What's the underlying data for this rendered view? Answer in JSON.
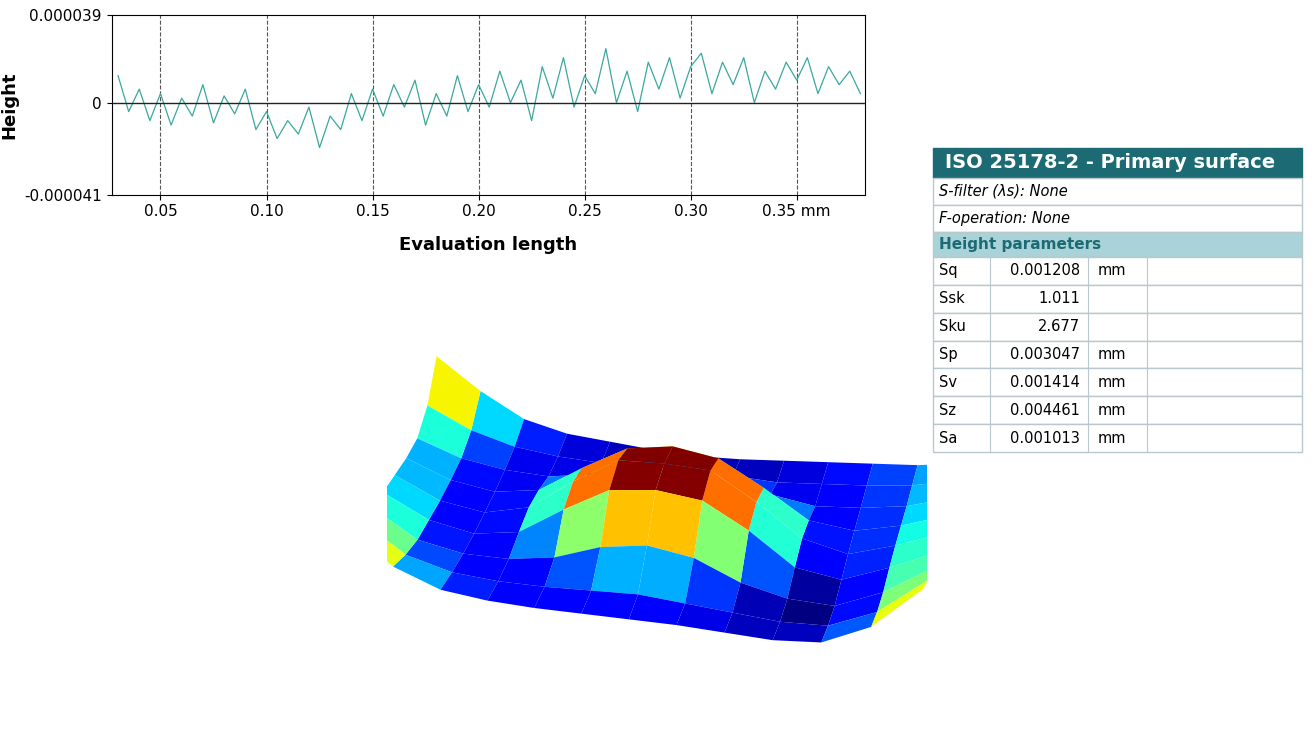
{
  "chart_data": {
    "type": "line",
    "xlabel": "Evaluation length",
    "ylabel": "Height",
    "x": [
      0.03,
      0.035,
      0.04,
      0.045,
      0.05,
      0.055,
      0.06,
      0.065,
      0.07,
      0.075,
      0.08,
      0.085,
      0.09,
      0.095,
      0.1,
      0.105,
      0.11,
      0.115,
      0.12,
      0.125,
      0.13,
      0.135,
      0.14,
      0.145,
      0.15,
      0.155,
      0.16,
      0.165,
      0.17,
      0.175,
      0.18,
      0.185,
      0.19,
      0.195,
      0.2,
      0.205,
      0.21,
      0.215,
      0.22,
      0.225,
      0.23,
      0.235,
      0.24,
      0.245,
      0.25,
      0.255,
      0.26,
      0.265,
      0.27,
      0.275,
      0.28,
      0.285,
      0.29,
      0.295,
      0.3,
      0.305,
      0.31,
      0.315,
      0.32,
      0.325,
      0.33,
      0.335,
      0.34,
      0.345,
      0.35,
      0.355,
      0.36,
      0.365,
      0.37,
      0.375,
      0.38
    ],
    "values": [
      1.2e-05,
      -4e-06,
      6e-06,
      -8e-06,
      4e-06,
      -1e-05,
      2e-06,
      -6e-06,
      8e-06,
      -9e-06,
      3e-06,
      -5e-06,
      6e-06,
      -1.2e-05,
      -4e-06,
      -1.6e-05,
      -8e-06,
      -1.4e-05,
      -2e-06,
      -2e-05,
      -6e-06,
      -1.2e-05,
      4e-06,
      -8e-06,
      6e-06,
      -6e-06,
      8e-06,
      -2e-06,
      1e-05,
      -1e-05,
      4e-06,
      -6e-06,
      1.2e-05,
      -4e-06,
      8e-06,
      -2e-06,
      1.4e-05,
      0,
      1e-05,
      -8e-06,
      1.6e-05,
      2e-06,
      2e-05,
      -2e-06,
      1.2e-05,
      4e-06,
      2.4e-05,
      0,
      1.4e-05,
      -4e-06,
      1.8e-05,
      6e-06,
      2e-05,
      2e-06,
      1.6e-05,
      2.2e-05,
      4e-06,
      1.8e-05,
      8e-06,
      2e-05,
      0,
      1.4e-05,
      6e-06,
      1.8e-05,
      1e-05,
      2e-05,
      4e-06,
      1.6e-05,
      8e-06,
      1.4e-05,
      4e-06
    ],
    "color": "#3aa8a0",
    "xlim": [
      0.027,
      0.382
    ],
    "xticks": [
      0.05,
      {
        "value": 0.1,
        "label": "0.10"
      },
      0.15,
      {
        "value": 0.2,
        "label": "0.20"
      },
      0.25,
      {
        "value": 0.3,
        "label": "0.30"
      },
      {
        "value": 0.35,
        "label": "0.35 mm"
      }
    ],
    "ylim": [
      -4.1e-05,
      3.9e-05
    ],
    "yticks": [
      {
        "value": -4.1e-05,
        "label": "-0.000041"
      },
      0,
      {
        "value": 3.9e-05,
        "label": "0.000039"
      }
    ],
    "grid": true
  },
  "surface": {
    "heights": [
      [
        0.003,
        0.0012,
        -0.0002,
        -0.0008,
        -0.001,
        -0.0012,
        -0.0013,
        -0.0012,
        -0.001,
        -0.0008,
        -0.0006,
        -0.0004,
        0.0
      ],
      [
        0.0012,
        0.0,
        -0.0007,
        -0.001,
        -0.0011,
        -0.001,
        -0.0009,
        -0.001,
        -0.0011,
        -0.0009,
        -0.0007,
        -0.0004,
        0.0002
      ],
      [
        0.0004,
        -0.0005,
        -0.0009,
        -0.001,
        -0.0006,
        0.0004,
        0.001,
        0.0004,
        -0.0006,
        -0.001,
        -0.0008,
        -0.0004,
        0.0004
      ],
      [
        0.0004,
        -0.0006,
        -0.001,
        -0.0006,
        0.001,
        0.0024,
        0.0028,
        0.0024,
        0.001,
        -0.0006,
        -0.0009,
        -0.0003,
        0.0006
      ],
      [
        0.0006,
        -0.0006,
        -0.001,
        -0.0004,
        0.0014,
        0.0029,
        0.003,
        0.0029,
        0.0014,
        -0.0004,
        -0.001,
        -0.0002,
        0.0008
      ],
      [
        0.0008,
        -0.0005,
        -0.001,
        -0.0006,
        0.001,
        0.0024,
        0.0027,
        0.0024,
        0.001,
        -0.0008,
        -0.0012,
        -0.0002,
        0.001
      ],
      [
        0.0012,
        -0.0004,
        -0.0009,
        -0.0009,
        -0.0005,
        0.0004,
        0.0008,
        0.0004,
        -0.0007,
        -0.0013,
        -0.0014,
        -0.0003,
        0.0014
      ],
      [
        0.0018,
        0.0,
        -0.0007,
        -0.0009,
        -0.0009,
        -0.0008,
        -0.0007,
        -0.0009,
        -0.0011,
        -0.0013,
        -0.0012,
        -0.0001,
        0.002
      ],
      [
        0.0026,
        0.0006,
        -0.0004,
        -0.0007,
        -0.0008,
        -0.0008,
        -0.0008,
        -0.0008,
        -0.0009,
        -0.001,
        -0.0008,
        0.0004,
        0.0028
      ]
    ]
  },
  "table": {
    "title": "ISO 25178-2 - Primary surface",
    "notes": [
      "S-filter (λs): None",
      "F-operation: None"
    ],
    "section": "Height parameters",
    "rows": [
      [
        "Sq",
        0.001208,
        "mm"
      ],
      [
        "Ssk",
        1.011,
        ""
      ],
      [
        "Sku",
        2.677,
        ""
      ],
      [
        "Sp",
        0.003047,
        "mm"
      ],
      [
        "Sv",
        0.001414,
        "mm"
      ],
      [
        "Sz",
        0.004461,
        "mm"
      ],
      [
        "Sa",
        0.001013,
        "mm"
      ]
    ]
  }
}
